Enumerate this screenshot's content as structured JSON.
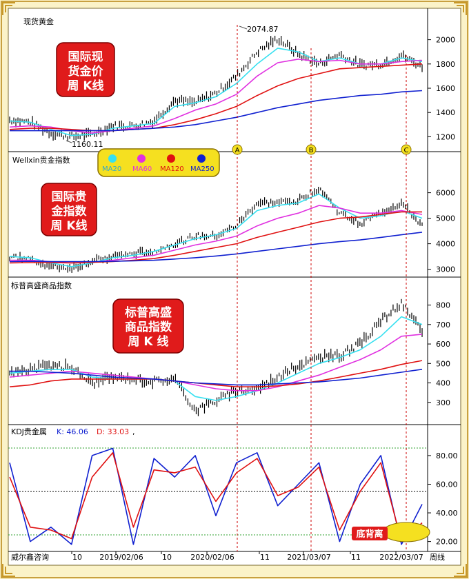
{
  "panels": {
    "gold": {
      "title": "现货黄金",
      "badge": [
        "国际现",
        "货金价",
        "周  K线"
      ],
      "high_label": "2074.87",
      "low_label": "1160.11",
      "ticks": [
        "2000",
        "1800",
        "1600",
        "1400",
        "1200"
      ]
    },
    "wellxin": {
      "title": "Wellxin贵金指数",
      "badge": [
        "国际贵",
        "金指数",
        "周  K线"
      ],
      "ticks": [
        "6000",
        "5000",
        "4000",
        "3000"
      ]
    },
    "sp": {
      "title": "标普高盛商品指数",
      "badge": [
        "标普高盛",
        "商品指数",
        "周  K  线"
      ],
      "ticks": [
        "800",
        "700",
        "600",
        "500",
        "400",
        "300"
      ]
    },
    "kdj": {
      "title": "KDJ贵金属",
      "k_label": "K: 46.06",
      "d_label": "D: 33.03",
      "trailing": ",",
      "ticks": [
        "80.00",
        "60.00",
        "40.00",
        "20.00"
      ],
      "callout": "底背离"
    }
  },
  "legend": {
    "items": [
      {
        "label": "MA20",
        "color": "#36e0f0"
      },
      {
        "label": "MA60",
        "color": "#e030e0"
      },
      {
        "label": "MA120",
        "color": "#e01010"
      },
      {
        "label": "MA250",
        "color": "#1020d0"
      }
    ]
  },
  "markers": [
    "A",
    "B",
    "C"
  ],
  "x_axis": {
    "labels": [
      "10",
      "2019/02/06",
      "10",
      "2020/02/06",
      "11",
      "2021/03/07",
      "11",
      "2022/03/07"
    ],
    "period": "周线"
  },
  "footer": {
    "brand": "威尔鑫咨询"
  },
  "colors": {
    "background": "#ffffff",
    "frame": "#fbf3c8",
    "badge": "#e01b1b",
    "badge_text": "#ffffff",
    "candle": "#000000",
    "divergence": "#cc0000",
    "grid_green": "#2fa02f"
  },
  "chart_data": [
    {
      "type": "line",
      "title": "现货黄金",
      "x": [
        0,
        10,
        20,
        30,
        40,
        50,
        60,
        70,
        80,
        90,
        100,
        110,
        120,
        130,
        140,
        150,
        160,
        170,
        180,
        190,
        200
      ],
      "series": [
        {
          "name": "现货黄金",
          "values": [
            1340,
            1320,
            1230,
            1200,
            1220,
            1290,
            1290,
            1330,
            1500,
            1480,
            1560,
            1700,
            1900,
            2010,
            1880,
            1800,
            1880,
            1790,
            1800,
            1870,
            1780
          ]
        },
        {
          "name": "MA20",
          "values": [
            1330,
            1320,
            1260,
            1210,
            1220,
            1270,
            1290,
            1310,
            1450,
            1480,
            1530,
            1640,
            1800,
            1930,
            1900,
            1820,
            1850,
            1800,
            1800,
            1850,
            1820
          ]
        },
        {
          "name": "MA60",
          "values": [
            1280,
            1290,
            1280,
            1250,
            1230,
            1250,
            1270,
            1290,
            1350,
            1420,
            1470,
            1550,
            1700,
            1810,
            1840,
            1820,
            1830,
            1800,
            1800,
            1820,
            1830
          ]
        },
        {
          "name": "MA120",
          "values": [
            1260,
            1270,
            1270,
            1260,
            1250,
            1250,
            1260,
            1270,
            1300,
            1340,
            1390,
            1450,
            1540,
            1620,
            1680,
            1720,
            1760,
            1770,
            1780,
            1790,
            1800
          ]
        },
        {
          "name": "MA250",
          "values": [
            1250,
            1250,
            1250,
            1250,
            1250,
            1250,
            1260,
            1270,
            1280,
            1300,
            1330,
            1360,
            1400,
            1440,
            1470,
            1500,
            1520,
            1540,
            1550,
            1570,
            1580
          ]
        }
      ],
      "ylim": [
        1100,
        2100
      ]
    },
    {
      "type": "line",
      "title": "Wellxin贵金指数",
      "x": [
        0,
        10,
        20,
        30,
        40,
        50,
        60,
        70,
        80,
        90,
        100,
        110,
        120,
        130,
        140,
        150,
        160,
        170,
        180,
        190,
        200
      ],
      "series": [
        {
          "name": "Wellxin贵金指数",
          "values": [
            3500,
            3400,
            3100,
            3050,
            3300,
            3500,
            3600,
            3700,
            4000,
            4300,
            4300,
            4700,
            5600,
            5600,
            5700,
            6200,
            5200,
            4800,
            5200,
            5600,
            4700
          ]
        },
        {
          "name": "MA20",
          "values": [
            3500,
            3450,
            3250,
            3100,
            3250,
            3450,
            3550,
            3700,
            3950,
            4200,
            4350,
            4600,
            5300,
            5500,
            5600,
            5950,
            5400,
            5000,
            5100,
            5300,
            5000
          ]
        },
        {
          "name": "MA60",
          "values": [
            3350,
            3350,
            3300,
            3250,
            3280,
            3350,
            3450,
            3550,
            3750,
            3950,
            4100,
            4300,
            4700,
            5000,
            5200,
            5500,
            5400,
            5200,
            5200,
            5300,
            5150
          ]
        },
        {
          "name": "MA120",
          "values": [
            3250,
            3260,
            3260,
            3250,
            3270,
            3300,
            3350,
            3420,
            3550,
            3700,
            3850,
            4000,
            4250,
            4450,
            4650,
            4850,
            5000,
            5050,
            5150,
            5250,
            5250
          ]
        },
        {
          "name": "MA250",
          "values": [
            3300,
            3310,
            3300,
            3300,
            3300,
            3310,
            3330,
            3350,
            3400,
            3450,
            3520,
            3600,
            3700,
            3800,
            3900,
            4000,
            4080,
            4150,
            4250,
            4350,
            4450
          ]
        }
      ],
      "ylim": [
        2800,
        6800
      ]
    },
    {
      "type": "line",
      "title": "标普高盛商品指数",
      "x": [
        0,
        10,
        20,
        30,
        40,
        50,
        60,
        70,
        80,
        90,
        100,
        110,
        120,
        130,
        140,
        150,
        160,
        170,
        180,
        190,
        200
      ],
      "series": [
        {
          "name": "标普高盛商品指数",
          "values": [
            450,
            470,
            490,
            480,
            400,
            430,
            420,
            410,
            420,
            260,
            310,
            360,
            370,
            430,
            490,
            530,
            540,
            600,
            720,
            810,
            660
          ]
        },
        {
          "name": "MA20",
          "values": [
            450,
            460,
            470,
            470,
            430,
            420,
            420,
            420,
            410,
            330,
            310,
            330,
            360,
            400,
            450,
            500,
            530,
            570,
            640,
            740,
            700
          ]
        },
        {
          "name": "MA60",
          "values": [
            430,
            440,
            450,
            460,
            450,
            440,
            430,
            420,
            410,
            390,
            370,
            360,
            360,
            380,
            410,
            440,
            480,
            520,
            570,
            640,
            650
          ]
        },
        {
          "name": "MA120",
          "values": [
            380,
            390,
            410,
            420,
            420,
            420,
            420,
            420,
            410,
            400,
            390,
            380,
            380,
            385,
            395,
            410,
            430,
            450,
            470,
            495,
            515
          ]
        },
        {
          "name": "MA250",
          "values": [
            460,
            460,
            455,
            450,
            440,
            430,
            425,
            420,
            410,
            400,
            395,
            390,
            390,
            395,
            400,
            405,
            415,
            425,
            440,
            455,
            470
          ]
        }
      ],
      "ylim": [
        200,
        880
      ]
    },
    {
      "type": "line",
      "title": "KDJ贵金属",
      "x": [
        0,
        10,
        20,
        30,
        40,
        50,
        60,
        70,
        80,
        90,
        100,
        110,
        120,
        130,
        140,
        150,
        160,
        170,
        180,
        190,
        200
      ],
      "series": [
        {
          "name": "K",
          "values": [
            75,
            20,
            30,
            18,
            80,
            85,
            18,
            78,
            65,
            80,
            38,
            75,
            82,
            45,
            60,
            75,
            20,
            60,
            80,
            18,
            46.06
          ]
        },
        {
          "name": "D",
          "values": [
            65,
            30,
            28,
            22,
            65,
            82,
            30,
            70,
            68,
            72,
            48,
            68,
            78,
            52,
            58,
            72,
            28,
            55,
            75,
            20,
            33.03
          ]
        }
      ],
      "ylim": [
        15,
        92
      ]
    }
  ]
}
